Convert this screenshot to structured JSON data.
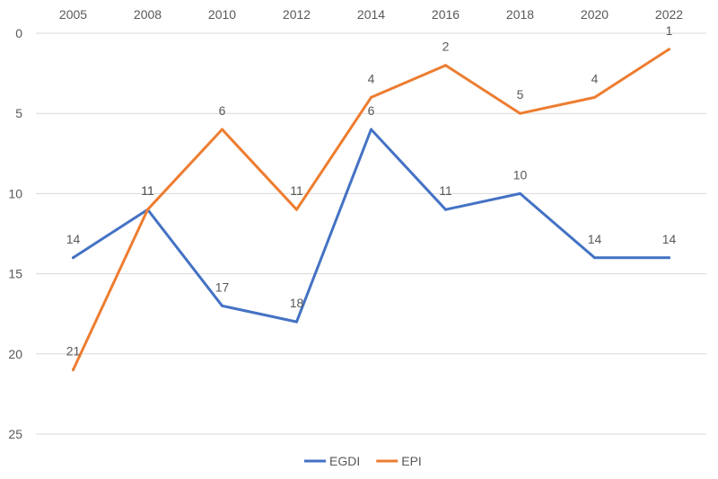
{
  "chart_data": {
    "type": "line",
    "title": "",
    "xlabel": "",
    "ylabel": "",
    "categories": [
      "2005",
      "2008",
      "2010",
      "2012",
      "2014",
      "2016",
      "2018",
      "2020",
      "2022"
    ],
    "ylim": [
      0,
      25
    ],
    "y_inverted": true,
    "y_ticks": [
      "0",
      "5",
      "10",
      "15",
      "20",
      "25"
    ],
    "x_axis_position": "top",
    "grid": true,
    "legend_position": "bottom",
    "series": [
      {
        "name": "EGDI",
        "color": "#4472C4",
        "values": [
          14,
          11,
          17,
          18,
          6,
          11,
          10,
          14,
          14
        ]
      },
      {
        "name": "EPI",
        "color": "#ED7D31",
        "values": [
          21,
          11,
          6,
          11,
          4,
          2,
          5,
          4,
          1
        ]
      }
    ]
  }
}
